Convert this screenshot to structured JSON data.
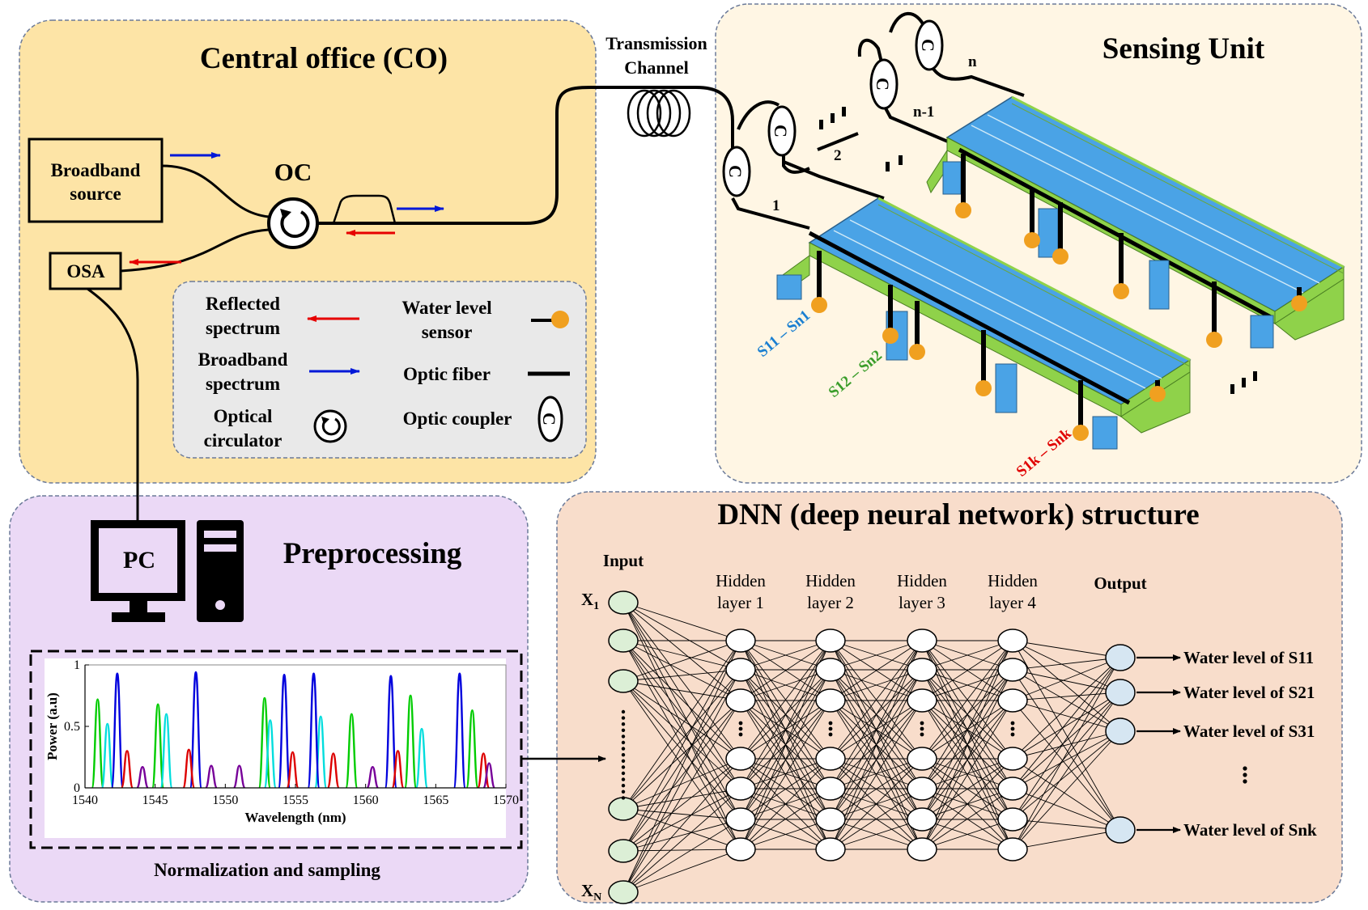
{
  "colors": {
    "co_panel": "#fde4a6",
    "sensing_panel": "#fff6e4",
    "preprocessing_panel": "#ebd9f6",
    "dnn_panel": "#f8ddcb",
    "legend_panel": "#e9e9e9",
    "reflected_arrow": "#e60000",
    "broadband_arrow": "#0018d8",
    "sensor_dot": "#f0a020",
    "bridge_deck": "#4aa3e6",
    "bridge_side": "#8fd24a",
    "input_node": "#dcefd6",
    "output_node": "#d6e6f2",
    "label_blue": "#1a7fd1",
    "label_green": "#3a9d2a",
    "label_red": "#e00000"
  },
  "central_office": {
    "title": "Central office (CO)",
    "broadband_source": "Broadband source",
    "osa": "OSA",
    "oc": "OC"
  },
  "transmission": {
    "label_line1": "Transmission",
    "label_line2": "Channel"
  },
  "legend": {
    "reflected_line1": "Reflected",
    "reflected_line2": "spectrum",
    "broadband_line1": "Broadband",
    "broadband_line2": "spectrum",
    "circulator_line1": "Optical",
    "circulator_line2": "circulator",
    "water_line1": "Water level",
    "water_line2": "sensor",
    "fiber": "Optic fiber",
    "coupler": "Optic coupler",
    "coupler_glyph": "C"
  },
  "sensing_unit": {
    "title": "Sensing Unit",
    "branch_labels": [
      "1",
      "2",
      "n-1",
      "n"
    ],
    "coupler_glyph": "C",
    "string_labels": [
      {
        "main": "S11",
        "sep": " – ",
        "last": "Sn1",
        "color": "#1a7fd1"
      },
      {
        "main": "S12",
        "sep": " – ",
        "last": "Sn2",
        "color": "#3a9d2a"
      },
      {
        "main": "S1k",
        "sep": " – ",
        "last": "Snk",
        "color": "#e00000"
      }
    ]
  },
  "preprocessing": {
    "title": "Preprocessing",
    "pc_label": "PC",
    "caption": "Normalization and sampling"
  },
  "chart_data": {
    "type": "line",
    "title": "",
    "xlabel": "Wavelength (nm)",
    "ylabel": "Power (a.u)",
    "xlim": [
      1540,
      1570
    ],
    "ylim": [
      0,
      1
    ],
    "xticks": [
      1540,
      1545,
      1550,
      1555,
      1560,
      1565,
      1570
    ],
    "yticks": [
      0,
      0.5,
      1
    ],
    "series": [
      {
        "color": "#00cc00",
        "peaks": [
          [
            1540.9,
            0.72
          ],
          [
            1545.2,
            0.68
          ],
          [
            1552.8,
            0.73
          ],
          [
            1559.0,
            0.6
          ],
          [
            1563.2,
            0.75
          ],
          [
            1567.6,
            0.63
          ]
        ]
      },
      {
        "color": "#00dddd",
        "peaks": [
          [
            1541.6,
            0.52
          ],
          [
            1545.8,
            0.6
          ],
          [
            1553.2,
            0.55
          ],
          [
            1556.8,
            0.58
          ],
          [
            1564.0,
            0.48
          ]
        ]
      },
      {
        "color": "#0000dd",
        "peaks": [
          [
            1542.3,
            0.93
          ],
          [
            1547.9,
            0.94
          ],
          [
            1554.2,
            0.92
          ],
          [
            1556.3,
            0.93
          ],
          [
            1561.8,
            0.91
          ],
          [
            1566.7,
            0.93
          ]
        ]
      },
      {
        "color": "#dd0000",
        "peaks": [
          [
            1543.0,
            0.3
          ],
          [
            1547.4,
            0.31
          ],
          [
            1554.8,
            0.29
          ],
          [
            1557.7,
            0.28
          ],
          [
            1562.3,
            0.3
          ],
          [
            1568.4,
            0.28
          ]
        ]
      },
      {
        "color": "#770099",
        "peaks": [
          [
            1544.1,
            0.17
          ],
          [
            1549.0,
            0.18
          ],
          [
            1551.0,
            0.18
          ],
          [
            1560.5,
            0.17
          ],
          [
            1568.8,
            0.2
          ]
        ]
      }
    ]
  },
  "dnn": {
    "title": "DNN (deep neural network) structure",
    "input_label": "Input",
    "x1": "X",
    "x1_sub": "1",
    "xn": "X",
    "xn_sub": "N",
    "hidden_labels": [
      {
        "l1": "Hidden",
        "l2": "layer 1"
      },
      {
        "l1": "Hidden",
        "l2": "layer 2"
      },
      {
        "l1": "Hidden",
        "l2": "layer 3"
      },
      {
        "l1": "Hidden",
        "l2": "layer 4"
      }
    ],
    "output_label": "Output",
    "outputs": [
      "Water level of S11",
      "Water level of S21",
      "Water level of S31",
      "Water level of Snk"
    ]
  }
}
